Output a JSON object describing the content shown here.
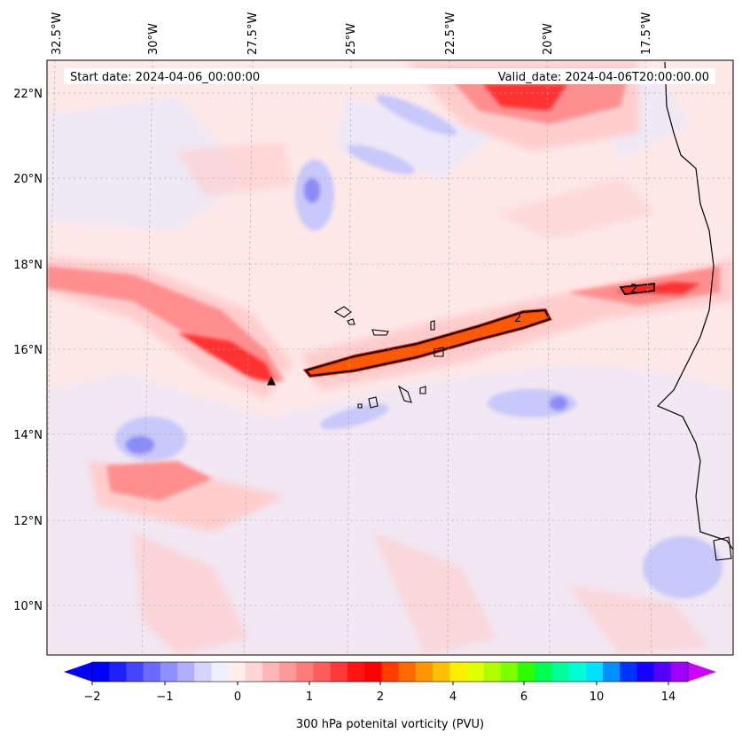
{
  "map": {
    "start_date": "Start date: 2024-04-06_00:00:00",
    "valid_date": "Valid_date: 2024-04-06T20:00:00.00",
    "lon_labels": [
      "32.5°W",
      "30°W",
      "27.5°W",
      "25°W",
      "22.5°W",
      "20°W",
      "17.5°W"
    ],
    "lat_labels": [
      "22°N",
      "20°N",
      "18°N",
      "16°N",
      "14°N",
      "12°N",
      "10°N"
    ],
    "contour_label": "2",
    "low_marker": "▲"
  },
  "colorbar": {
    "title": "300 hPa potenital vorticity (PVU)",
    "tick_labels": [
      "−2",
      "−1",
      "0",
      "1",
      "2",
      "4",
      "6",
      "10",
      "14"
    ],
    "bins": [
      "#0000ff",
      "#2020ff",
      "#4545ff",
      "#6a6aff",
      "#8f8fff",
      "#b0b0ff",
      "#d4d4ff",
      "#efefff",
      "#ffecec",
      "#ffd5d5",
      "#ffb5b5",
      "#ff9898",
      "#ff7a7a",
      "#ff5c5c",
      "#ff3838",
      "#ff1414",
      "#ff0000",
      "#ff3c00",
      "#ff6a00",
      "#ff9600",
      "#ffbf00",
      "#ffee00",
      "#e0ff00",
      "#b0ff00",
      "#7cff00",
      "#2dff00",
      "#00ff50",
      "#00ff9a",
      "#00ffd2",
      "#00e0ff",
      "#0090ff",
      "#0033ff",
      "#1800ff",
      "#5500ff",
      "#a000ff"
    ],
    "under_color": "#0000ff",
    "over_color": "#cc00ff"
  }
}
